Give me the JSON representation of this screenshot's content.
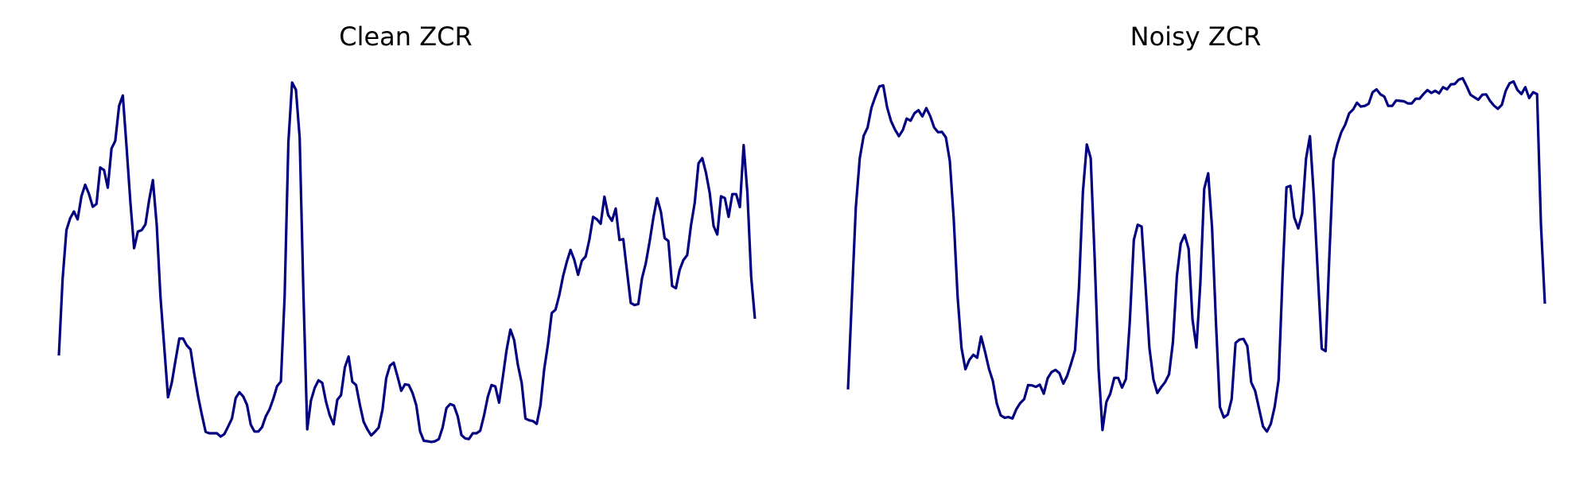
{
  "chart_data": [
    {
      "type": "line",
      "title": "Clean ZCR",
      "axes_visible": false,
      "grid": false,
      "ylim": [
        0,
        1
      ],
      "color": "#000080",
      "series": [
        {
          "values": [
            0.227,
            0.439,
            0.575,
            0.608,
            0.627,
            0.605,
            0.669,
            0.701,
            0.676,
            0.64,
            0.648,
            0.749,
            0.742,
            0.693,
            0.802,
            0.823,
            0.92,
            0.949,
            0.806,
            0.653,
            0.525,
            0.571,
            0.575,
            0.591,
            0.659,
            0.714,
            0.59,
            0.391,
            0.252,
            0.111,
            0.151,
            0.213,
            0.274,
            0.274,
            0.255,
            0.244,
            0.175,
            0.114,
            0.063,
            0.015,
            0.011,
            0.011,
            0.011,
            0.002,
            0.009,
            0.03,
            0.052,
            0.109,
            0.125,
            0.113,
            0.09,
            0.035,
            0.016,
            0.016,
            0.028,
            0.058,
            0.078,
            0.107,
            0.142,
            0.155,
            0.391,
            0.818,
            0.985,
            0.965,
            0.832,
            0.401,
            0.022,
            0.102,
            0.137,
            0.158,
            0.151,
            0.099,
            0.061,
            0.036,
            0.104,
            0.117,
            0.194,
            0.224,
            0.154,
            0.145,
            0.09,
            0.043,
            0.022,
            0.005,
            0.015,
            0.027,
            0.076,
            0.164,
            0.199,
            0.207,
            0.169,
            0.129,
            0.147,
            0.145,
            0.123,
            0.089,
            0.016,
            -0.01,
            -0.011,
            -0.013,
            -0.011,
            -0.005,
            0.027,
            0.081,
            0.092,
            0.088,
            0.058,
            0.006,
            -0.003,
            -0.005,
            0.011,
            0.011,
            0.018,
            0.061,
            0.112,
            0.145,
            0.141,
            0.096,
            0.167,
            0.242,
            0.299,
            0.27,
            0.201,
            0.151,
            0.052,
            0.047,
            0.045,
            0.037,
            0.089,
            0.189,
            0.259,
            0.345,
            0.354,
            0.395,
            0.447,
            0.487,
            0.52,
            0.492,
            0.451,
            0.49,
            0.502,
            0.549,
            0.612,
            0.605,
            0.593,
            0.668,
            0.617,
            0.601,
            0.635,
            0.548,
            0.55,
            0.461,
            0.373,
            0.367,
            0.37,
            0.442,
            0.483,
            0.543,
            0.609,
            0.664,
            0.626,
            0.553,
            0.545,
            0.42,
            0.414,
            0.465,
            0.492,
            0.506,
            0.588,
            0.651,
            0.761,
            0.775,
            0.734,
            0.678,
            0.587,
            0.563,
            0.669,
            0.664,
            0.612,
            0.675,
            0.675,
            0.639,
            0.811,
            0.68,
            0.445,
            0.329
          ]
        }
      ]
    },
    {
      "type": "line",
      "title": "Noisy ZCR",
      "axes_visible": false,
      "grid": false,
      "ylim": [
        0,
        1
      ],
      "color": "#000080",
      "series": [
        {
          "values": [
            0.133,
            0.388,
            0.637,
            0.775,
            0.837,
            0.86,
            0.915,
            0.946,
            0.974,
            0.977,
            0.916,
            0.878,
            0.854,
            0.836,
            0.853,
            0.885,
            0.879,
            0.9,
            0.908,
            0.891,
            0.914,
            0.892,
            0.86,
            0.847,
            0.848,
            0.833,
            0.767,
            0.606,
            0.39,
            0.248,
            0.189,
            0.215,
            0.229,
            0.221,
            0.28,
            0.238,
            0.19,
            0.156,
            0.094,
            0.061,
            0.054,
            0.056,
            0.052,
            0.078,
            0.095,
            0.106,
            0.145,
            0.144,
            0.14,
            0.146,
            0.121,
            0.164,
            0.181,
            0.187,
            0.178,
            0.149,
            0.171,
            0.205,
            0.242,
            0.419,
            0.682,
            0.813,
            0.775,
            0.501,
            0.189,
            0.02,
            0.098,
            0.121,
            0.165,
            0.165,
            0.138,
            0.162,
            0.323,
            0.548,
            0.59,
            0.585,
            0.421,
            0.248,
            0.161,
            0.123,
            0.139,
            0.153,
            0.175,
            0.265,
            0.447,
            0.538,
            0.562,
            0.523,
            0.326,
            0.249,
            0.427,
            0.69,
            0.733,
            0.58,
            0.316,
            0.084,
            0.055,
            0.063,
            0.106,
            0.262,
            0.271,
            0.273,
            0.253,
            0.152,
            0.129,
            0.08,
            0.03,
            0.016,
            0.037,
            0.085,
            0.159,
            0.449,
            0.694,
            0.698,
            0.61,
            0.58,
            0.621,
            0.774,
            0.836,
            0.67,
            0.453,
            0.246,
            0.239,
            0.514,
            0.769,
            0.814,
            0.847,
            0.868,
            0.899,
            0.91,
            0.929,
            0.918,
            0.92,
            0.926,
            0.958,
            0.966,
            0.952,
            0.946,
            0.92,
            0.92,
            0.935,
            0.934,
            0.933,
            0.927,
            0.927,
            0.94,
            0.94,
            0.953,
            0.964,
            0.956,
            0.962,
            0.955,
            0.972,
            0.966,
            0.98,
            0.981,
            0.993,
            0.997,
            0.975,
            0.951,
            0.944,
            0.937,
            0.951,
            0.952,
            0.934,
            0.921,
            0.912,
            0.923,
            0.962,
            0.983,
            0.988,
            0.964,
            0.953,
            0.972,
            0.942,
            0.958,
            0.953,
            0.59,
            0.371
          ]
        }
      ]
    }
  ]
}
